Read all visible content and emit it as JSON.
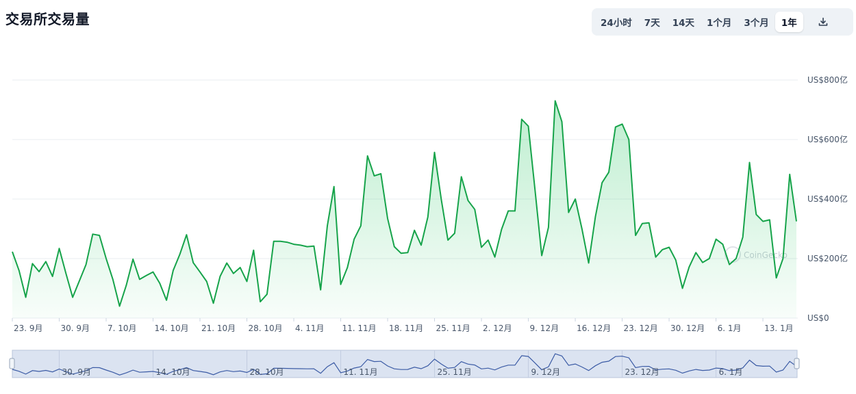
{
  "page": {
    "title": "交易所交易量"
  },
  "range_buttons": [
    {
      "label": "24小时",
      "active": false
    },
    {
      "label": "7天",
      "active": false
    },
    {
      "label": "14天",
      "active": false
    },
    {
      "label": "1个月",
      "active": false
    },
    {
      "label": "3个月",
      "active": false
    },
    {
      "label": "1年",
      "active": true
    }
  ],
  "download_icon": "download-icon",
  "watermark": "CoinGecko",
  "colors": {
    "line": "#16a34a",
    "area": "#22c55e",
    "navigator_fill": "#dbe3f1",
    "navigator_line": "#3b5ba5"
  },
  "chart_data": {
    "type": "area",
    "title": "",
    "xlabel": "",
    "ylabel": "",
    "ylim": [
      0,
      800
    ],
    "y_unit": "亿 USD",
    "y_ticks": [
      0,
      200,
      400,
      600,
      800
    ],
    "y_tick_labels": [
      "US$0",
      "US$200亿",
      "US$400亿",
      "US$600亿",
      "US$800亿"
    ],
    "x_ticks": [
      {
        "day": 0,
        "label": "23. 9月"
      },
      {
        "day": 7,
        "label": "30. 9月"
      },
      {
        "day": 14,
        "label": "7. 10月"
      },
      {
        "day": 21,
        "label": "14. 10月"
      },
      {
        "day": 28,
        "label": "21. 10月"
      },
      {
        "day": 35,
        "label": "28. 10月"
      },
      {
        "day": 42,
        "label": "4. 11月"
      },
      {
        "day": 49,
        "label": "11. 11月"
      },
      {
        "day": 56,
        "label": "18. 11月"
      },
      {
        "day": 63,
        "label": "25. 11月"
      },
      {
        "day": 70,
        "label": "2. 12月"
      },
      {
        "day": 77,
        "label": "9. 12月"
      },
      {
        "day": 84,
        "label": "16. 12月"
      },
      {
        "day": 91,
        "label": "23. 12月"
      },
      {
        "day": 98,
        "label": "30. 12月"
      },
      {
        "day": 105,
        "label": "6. 1月"
      },
      {
        "day": 112,
        "label": "13. 1月"
      }
    ],
    "navigator_labels": [
      {
        "day": 7,
        "label": "30. 9月"
      },
      {
        "day": 21,
        "label": "14. 10月"
      },
      {
        "day": 35,
        "label": "28. 10月"
      },
      {
        "day": 49,
        "label": "11. 11月"
      },
      {
        "day": 63,
        "label": "25. 11月"
      },
      {
        "day": 77,
        "label": "9. 12月"
      },
      {
        "day": 91,
        "label": "23. 12月"
      },
      {
        "day": 105,
        "label": "6. 1月"
      }
    ],
    "series": [
      {
        "values": [
          223,
          160,
          70,
          183,
          156,
          190,
          140,
          234,
          150,
          70,
          125,
          180,
          282,
          278,
          200,
          130,
          40,
          110,
          198,
          130,
          143,
          155,
          117,
          60,
          160,
          215,
          280,
          186,
          155,
          123,
          50,
          140,
          185,
          150,
          170,
          123,
          228,
          55,
          80,
          258,
          258,
          255,
          248,
          245,
          240,
          242,
          95,
          310,
          442,
          113,
          170,
          265,
          310,
          545,
          478,
          485,
          335,
          240,
          218,
          220,
          295,
          245,
          340,
          557,
          400,
          262,
          285,
          475,
          395,
          365,
          238,
          262,
          205,
          298,
          360,
          360,
          668,
          645,
          430,
          210,
          305,
          730,
          660,
          355,
          400,
          300,
          185,
          340,
          455,
          490,
          642,
          652,
          600,
          278,
          318,
          320,
          205,
          230,
          238,
          195,
          100,
          172,
          220,
          187,
          200,
          265,
          248,
          180,
          200,
          272,
          523,
          348,
          325,
          330,
          135,
          200,
          483,
          325
        ]
      }
    ]
  }
}
